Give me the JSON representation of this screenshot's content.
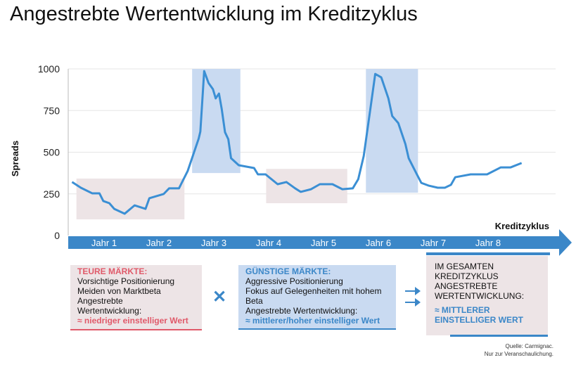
{
  "title": "Angestrebte Wertentwicklung im Kreditzyklus",
  "colors": {
    "line": "#3b8fd4",
    "pink": "#ede4e6",
    "blue": "#c9daf1",
    "axis": "#3b87c8",
    "red": "#e05a6a"
  },
  "chart_data": {
    "type": "line",
    "title": "Angestrebte Wertentwicklung im Kreditzyklus",
    "ylabel": "Spreads",
    "xlabel": "Kreditzyklus",
    "ylim": [
      0,
      1000
    ],
    "xlim": [
      -0.15,
      8.74
    ],
    "yticks": [
      "0",
      "250",
      "500",
      "750",
      "1000"
    ],
    "ytick_values": [
      0,
      250,
      500,
      750,
      1000
    ],
    "categories": [
      "Jahr 1",
      "Jahr 2",
      "Jahr 3",
      "Jahr 4",
      "Jahr 5",
      "Jahr 6",
      "Jahr 7",
      "Jahr 8"
    ],
    "grid": true,
    "series": [
      {
        "name": "Spreads",
        "x": [
          -0.08,
          0.08,
          0.29,
          0.42,
          0.49,
          0.6,
          0.69,
          0.88,
          1.06,
          1.26,
          1.33,
          1.59,
          1.69,
          1.87,
          1.92,
          2.03,
          2.23,
          2.26,
          2.33,
          2.41,
          2.49,
          2.54,
          2.6,
          2.65,
          2.71,
          2.77,
          2.82,
          2.96,
          3.24,
          3.31,
          3.45,
          3.67,
          3.83,
          3.99,
          4.09,
          4.28,
          4.44,
          4.67,
          4.85,
          5.04,
          5.14,
          5.24,
          5.37,
          5.45,
          5.56,
          5.69,
          5.76,
          5.87,
          6.0,
          6.06,
          6.21,
          6.29,
          6.42,
          6.59,
          6.72,
          6.83,
          6.91,
          7.19,
          7.49,
          7.74,
          7.92,
          8.12
        ],
        "y": [
          321,
          287,
          253,
          253,
          207,
          194,
          160,
          131,
          181,
          160,
          224,
          249,
          283,
          283,
          316,
          388,
          582,
          624,
          987,
          915,
          878,
          823,
          852,
          759,
          620,
          578,
          464,
          422,
          405,
          367,
          367,
          308,
          321,
          283,
          262,
          278,
          308,
          308,
          278,
          283,
          338,
          477,
          781,
          970,
          949,
          823,
          717,
          675,
          549,
          464,
          367,
          316,
          300,
          287,
          287,
          304,
          350,
          367,
          367,
          409,
          409,
          435
        ]
      }
    ],
    "regions": [
      {
        "kind": "expensive",
        "x": [
          0,
          1.97
        ],
        "y": [
          97,
          342
        ]
      },
      {
        "kind": "cheap",
        "x": [
          2.11,
          2.99
        ],
        "y": [
          375,
          1000
        ]
      },
      {
        "kind": "expensive",
        "x": [
          3.46,
          4.94
        ],
        "y": [
          194,
          400
        ]
      },
      {
        "kind": "cheap",
        "x": [
          5.28,
          6.23
        ],
        "y": [
          257,
          1000
        ]
      }
    ]
  },
  "boxes": {
    "teuer": {
      "heading": "TEURE MÄRKTE:",
      "lines": [
        "Vorsichtige Positionierung",
        "Meiden von Marktbeta",
        "Angestrebte",
        "Wertentwicklung:"
      ],
      "result": "≈ niedriger einstelliger Wert"
    },
    "operator": "✕",
    "guenstig": {
      "heading": "GÜNSTIGE MÄRKTE:",
      "lines": [
        "Aggressive Positionierung",
        "Fokus auf Gelegenheiten mit hohem",
        "Beta",
        "Angestrebte Wertentwicklung:"
      ],
      "result": "≈ mittlerer/hoher einstelliger Wert"
    },
    "gesamt": {
      "lines": [
        "IM GESAMTEN",
        "KREDITZYKLUS",
        "ANGESTREBTE",
        "WERTENTWICKLUNG:"
      ],
      "result": [
        "≈ MITTLERER",
        "EINSTELLIGER WERT"
      ]
    }
  },
  "source": [
    "Quelle: Carmignac.",
    "Nur zur Veranschaulichung."
  ]
}
